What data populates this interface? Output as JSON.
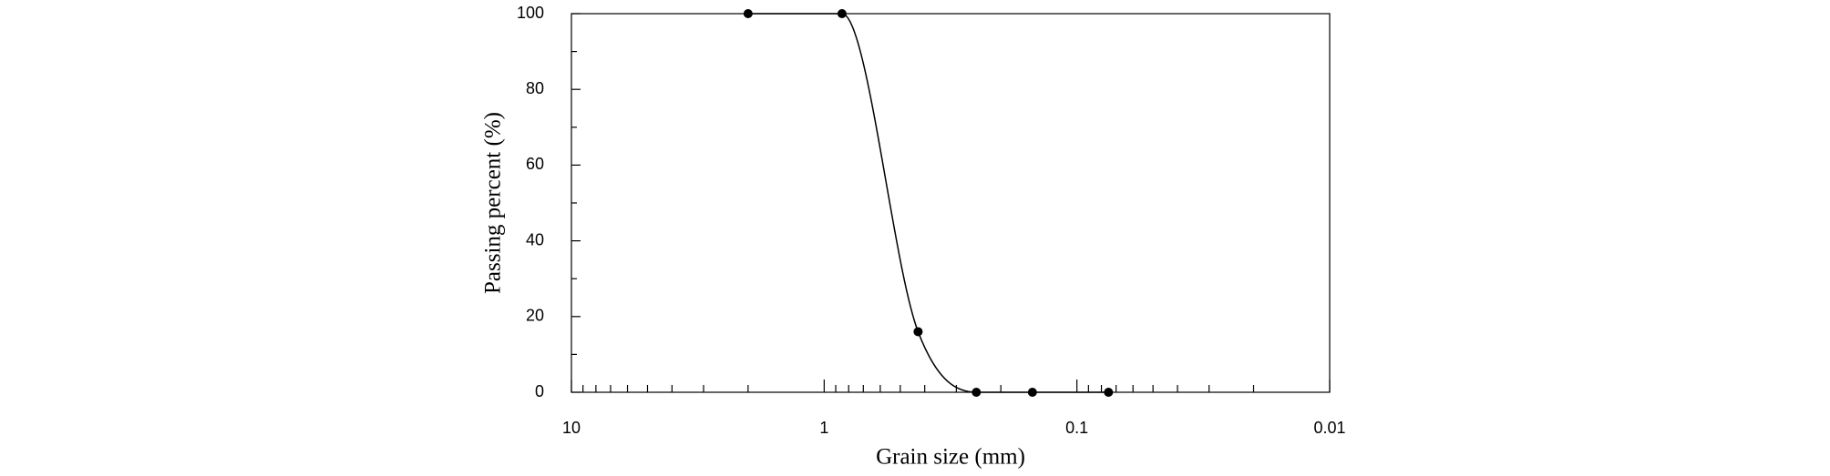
{
  "chart_data": {
    "type": "line",
    "x_label": "Grain size (mm)",
    "y_label": "Passing percent (%)",
    "x": [
      2,
      0.85,
      0.425,
      0.25,
      0.15,
      0.075
    ],
    "series": [
      {
        "color": "#000000",
        "values": [
          100,
          100,
          16,
          0,
          0,
          0
        ]
      }
    ],
    "xlim": [
      10,
      0.01
    ],
    "xticks": [
      10,
      1,
      0.1,
      0.01
    ],
    "x_log": true,
    "ylim": [
      0,
      100
    ],
    "yticks": [
      0,
      20,
      40,
      60,
      80,
      100
    ]
  }
}
